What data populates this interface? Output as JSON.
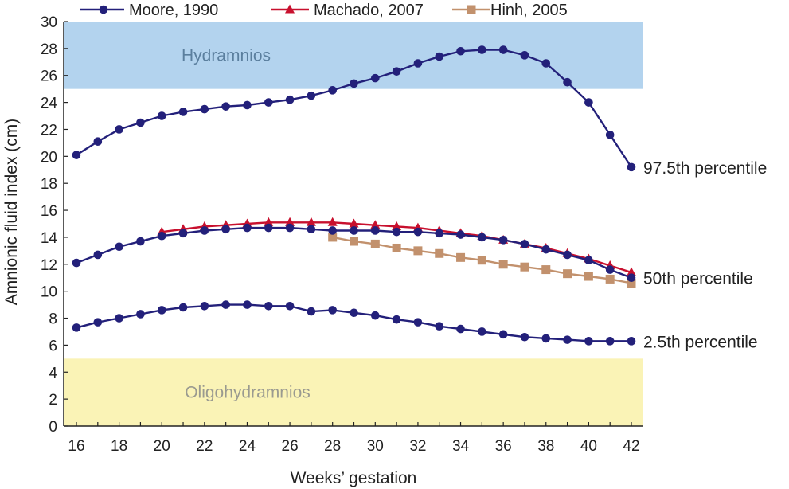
{
  "chart_data": {
    "type": "line",
    "xlabel": "Weeks’ gestation",
    "ylabel": "Amnionic fluid index (cm)",
    "xlim": [
      16,
      42
    ],
    "ylim": [
      0,
      30
    ],
    "xticks": [
      16,
      18,
      20,
      22,
      24,
      26,
      28,
      30,
      32,
      34,
      36,
      38,
      40,
      42
    ],
    "yticks": [
      0,
      2,
      4,
      6,
      8,
      10,
      12,
      14,
      16,
      18,
      20,
      22,
      24,
      26,
      28,
      30
    ],
    "grid": false,
    "legend_position": "top",
    "bands": [
      {
        "label": "Hydramnios",
        "y0": 25,
        "y1": 30,
        "color": "#b3d3ee",
        "text_color": "#5b7f9e"
      },
      {
        "label": "Oligohydramnios",
        "y0": 0,
        "y1": 5,
        "color": "#faf3b6",
        "text_color": "#9a9a90"
      }
    ],
    "legend": [
      {
        "name": "Moore, 1990",
        "color": "#23207a",
        "marker": "circle"
      },
      {
        "name": "Machado, 2007",
        "color": "#c8102e",
        "marker": "triangle"
      },
      {
        "name": "Hinh, 2005",
        "color": "#c2916d",
        "marker": "square"
      }
    ],
    "series": [
      {
        "group": "Moore, 1990",
        "label": "97.5th percentile",
        "color": "#23207a",
        "marker": "circle",
        "x": [
          16,
          17,
          18,
          19,
          20,
          21,
          22,
          23,
          24,
          25,
          26,
          27,
          28,
          29,
          30,
          31,
          32,
          33,
          34,
          35,
          36,
          37,
          38,
          39,
          40,
          41,
          42
        ],
        "y": [
          20.1,
          21.1,
          22.0,
          22.5,
          23.0,
          23.3,
          23.5,
          23.7,
          23.8,
          24.0,
          24.2,
          24.5,
          24.9,
          25.4,
          25.8,
          26.3,
          26.9,
          27.4,
          27.8,
          27.9,
          27.9,
          27.5,
          26.9,
          25.5,
          24.0,
          21.6,
          19.2
        ]
      },
      {
        "group": "Moore, 1990",
        "label": "50th percentile",
        "color": "#23207a",
        "marker": "circle",
        "x": [
          16,
          17,
          18,
          19,
          20,
          21,
          22,
          23,
          24,
          25,
          26,
          27,
          28,
          29,
          30,
          31,
          32,
          33,
          34,
          35,
          36,
          37,
          38,
          39,
          40,
          41,
          42
        ],
        "y": [
          12.1,
          12.7,
          13.3,
          13.7,
          14.1,
          14.3,
          14.5,
          14.6,
          14.7,
          14.7,
          14.7,
          14.6,
          14.5,
          14.5,
          14.5,
          14.4,
          14.4,
          14.3,
          14.2,
          14.0,
          13.8,
          13.5,
          13.1,
          12.7,
          12.3,
          11.6,
          11.0
        ]
      },
      {
        "group": "Moore, 1990",
        "label": "2.5th percentile",
        "color": "#23207a",
        "marker": "circle",
        "x": [
          16,
          17,
          18,
          19,
          20,
          21,
          22,
          23,
          24,
          25,
          26,
          27,
          28,
          29,
          30,
          31,
          32,
          33,
          34,
          35,
          36,
          37,
          38,
          39,
          40,
          41,
          42
        ],
        "y": [
          7.3,
          7.7,
          8.0,
          8.3,
          8.6,
          8.8,
          8.9,
          9.0,
          9.0,
          8.9,
          8.9,
          8.5,
          8.6,
          8.4,
          8.2,
          7.9,
          7.7,
          7.4,
          7.2,
          7.0,
          6.8,
          6.6,
          6.5,
          6.4,
          6.3,
          6.3,
          6.3
        ]
      },
      {
        "group": "Machado, 2007",
        "label": "",
        "color": "#c8102e",
        "marker": "triangle",
        "x": [
          20,
          21,
          22,
          23,
          24,
          25,
          26,
          27,
          28,
          29,
          30,
          31,
          32,
          33,
          34,
          35,
          36,
          37,
          38,
          39,
          40,
          41,
          42
        ],
        "y": [
          14.4,
          14.6,
          14.8,
          14.9,
          15.0,
          15.1,
          15.1,
          15.1,
          15.1,
          15.0,
          14.9,
          14.8,
          14.7,
          14.5,
          14.3,
          14.1,
          13.8,
          13.5,
          13.2,
          12.8,
          12.4,
          11.9,
          11.4
        ]
      },
      {
        "group": "Hinh, 2005",
        "label": "",
        "color": "#c2916d",
        "marker": "square",
        "x": [
          28,
          29,
          30,
          31,
          32,
          33,
          34,
          35,
          36,
          37,
          38,
          39,
          40,
          41,
          42
        ],
        "y": [
          14.0,
          13.7,
          13.5,
          13.2,
          13.0,
          12.8,
          12.5,
          12.3,
          12.0,
          11.8,
          11.6,
          11.3,
          11.1,
          10.9,
          10.6
        ]
      }
    ]
  }
}
